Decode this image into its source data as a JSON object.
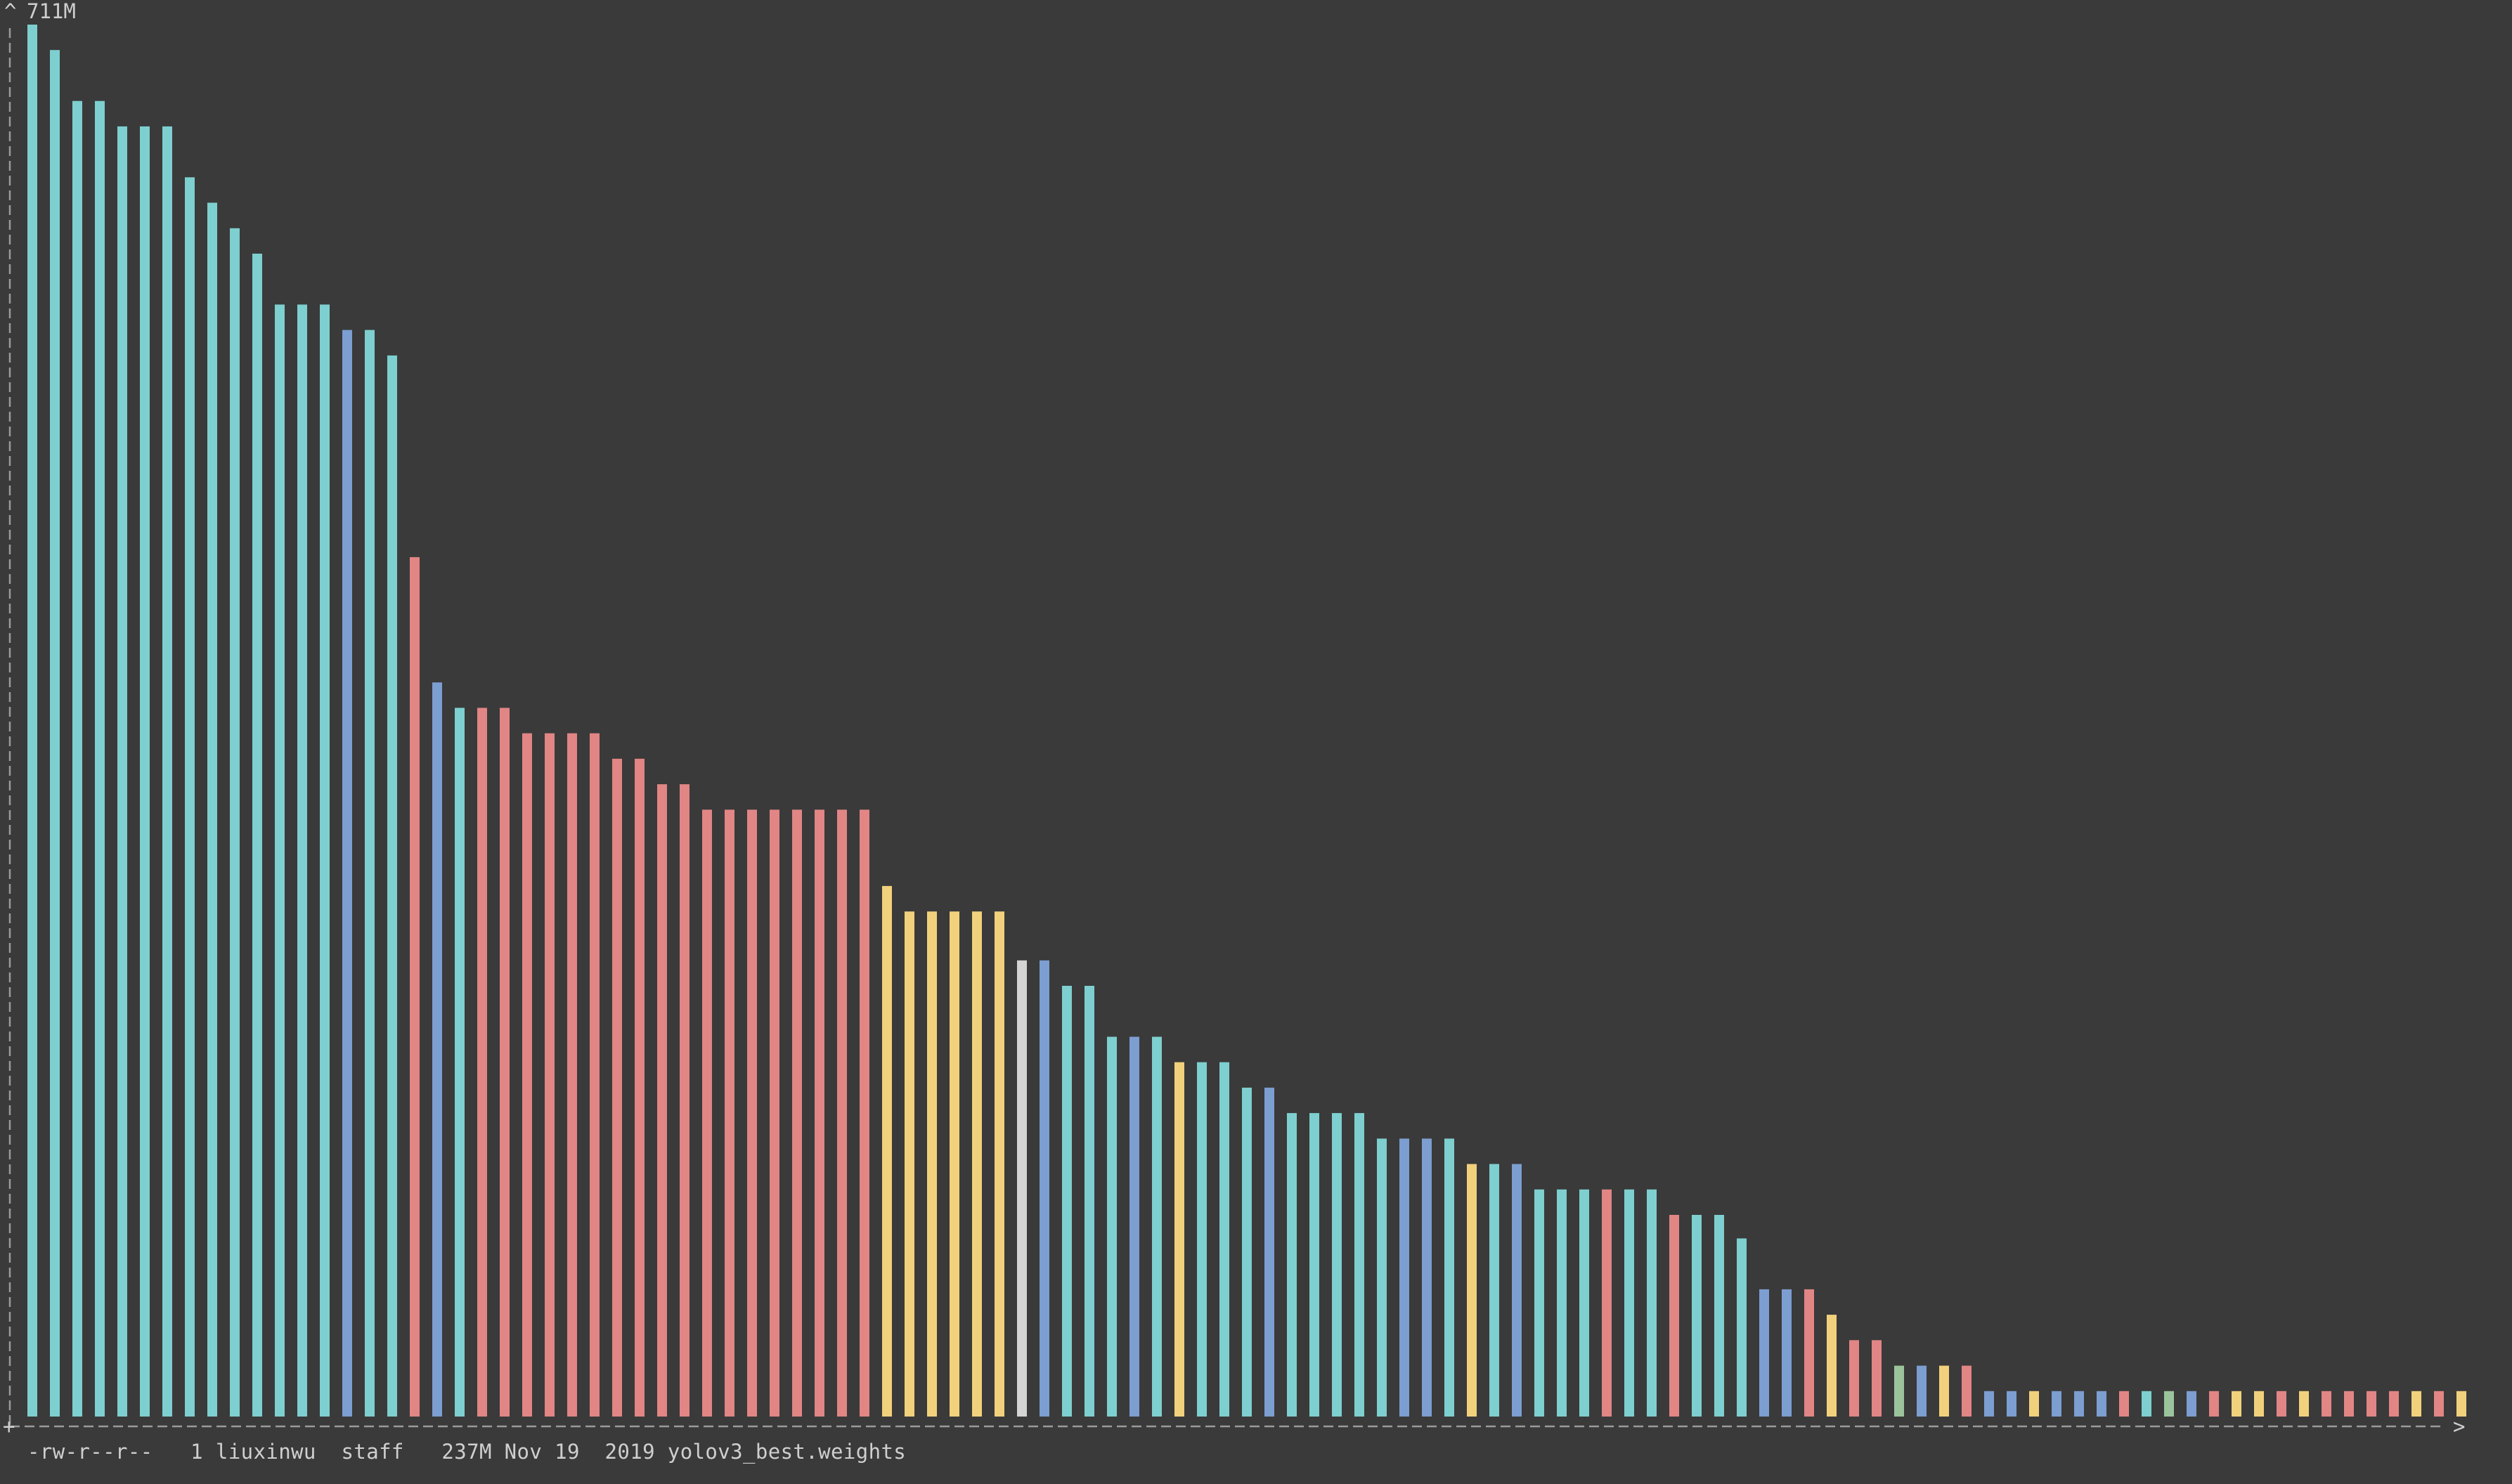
{
  "chart_data": {
    "type": "bar",
    "title": "",
    "xlabel": "",
    "ylabel": "",
    "y_max_label": "711M",
    "ylim": [
      0,
      711
    ],
    "axis_chars": {
      "y_arrow": "^",
      "x_arrow": ">",
      "origin": "+"
    },
    "grid": false,
    "legend": "none",
    "colors": {
      "teal": "#7ecfcf",
      "blue": "#7c9ed1",
      "red": "#e28585",
      "yellow": "#f2d17c",
      "green": "#9cc49c",
      "gray": "#d4d4d4"
    },
    "values": [
      711,
      698,
      672,
      672,
      659,
      659,
      659,
      633,
      620,
      607,
      594,
      568,
      568,
      568,
      555,
      555,
      542,
      439,
      375,
      362,
      362,
      362,
      349,
      349,
      349,
      349,
      336,
      336,
      323,
      323,
      310,
      310,
      310,
      310,
      310,
      310,
      310,
      310,
      271,
      258,
      258,
      258,
      258,
      258,
      233,
      233,
      220,
      220,
      194,
      194,
      194,
      181,
      181,
      181,
      168,
      168,
      155,
      155,
      155,
      155,
      142,
      142,
      142,
      142,
      129,
      129,
      129,
      116,
      116,
      116,
      116,
      116,
      116,
      103,
      103,
      103,
      91,
      65,
      65,
      65,
      52,
      39,
      39,
      26,
      26,
      26,
      26,
      13,
      13,
      13,
      13,
      13,
      13,
      13,
      13,
      13,
      13,
      13,
      13,
      13,
      13,
      13,
      13,
      13,
      13,
      13,
      13,
      13,
      13
    ],
    "bar_colors": [
      "teal",
      "teal",
      "teal",
      "teal",
      "teal",
      "teal",
      "teal",
      "teal",
      "teal",
      "teal",
      "teal",
      "teal",
      "teal",
      "teal",
      "blue",
      "teal",
      "teal",
      "red",
      "blue",
      "teal",
      "red",
      "red",
      "red",
      "red",
      "red",
      "red",
      "red",
      "red",
      "red",
      "red",
      "red",
      "red",
      "red",
      "red",
      "red",
      "red",
      "red",
      "red",
      "yellow",
      "yellow",
      "yellow",
      "yellow",
      "yellow",
      "yellow",
      "gray",
      "blue",
      "teal",
      "teal",
      "teal",
      "blue",
      "teal",
      "yellow",
      "teal",
      "teal",
      "teal",
      "blue",
      "teal",
      "teal",
      "teal",
      "teal",
      "teal",
      "blue",
      "blue",
      "teal",
      "yellow",
      "teal",
      "blue",
      "teal",
      "teal",
      "teal",
      "red",
      "teal",
      "teal",
      "red",
      "teal",
      "teal",
      "teal",
      "blue",
      "blue",
      "red",
      "yellow",
      "red",
      "red",
      "green",
      "blue",
      "yellow",
      "red",
      "blue",
      "blue",
      "yellow",
      "blue",
      "blue",
      "blue",
      "red",
      "teal",
      "green",
      "blue",
      "red",
      "yellow",
      "yellow",
      "red",
      "yellow",
      "red",
      "red",
      "red",
      "red",
      "yellow",
      "red",
      "yellow"
    ]
  },
  "status": {
    "file_line": "-rw-r--r--   1 liuxinwu  staff   237M Nov 19  2019 yolov3_best.weights"
  }
}
